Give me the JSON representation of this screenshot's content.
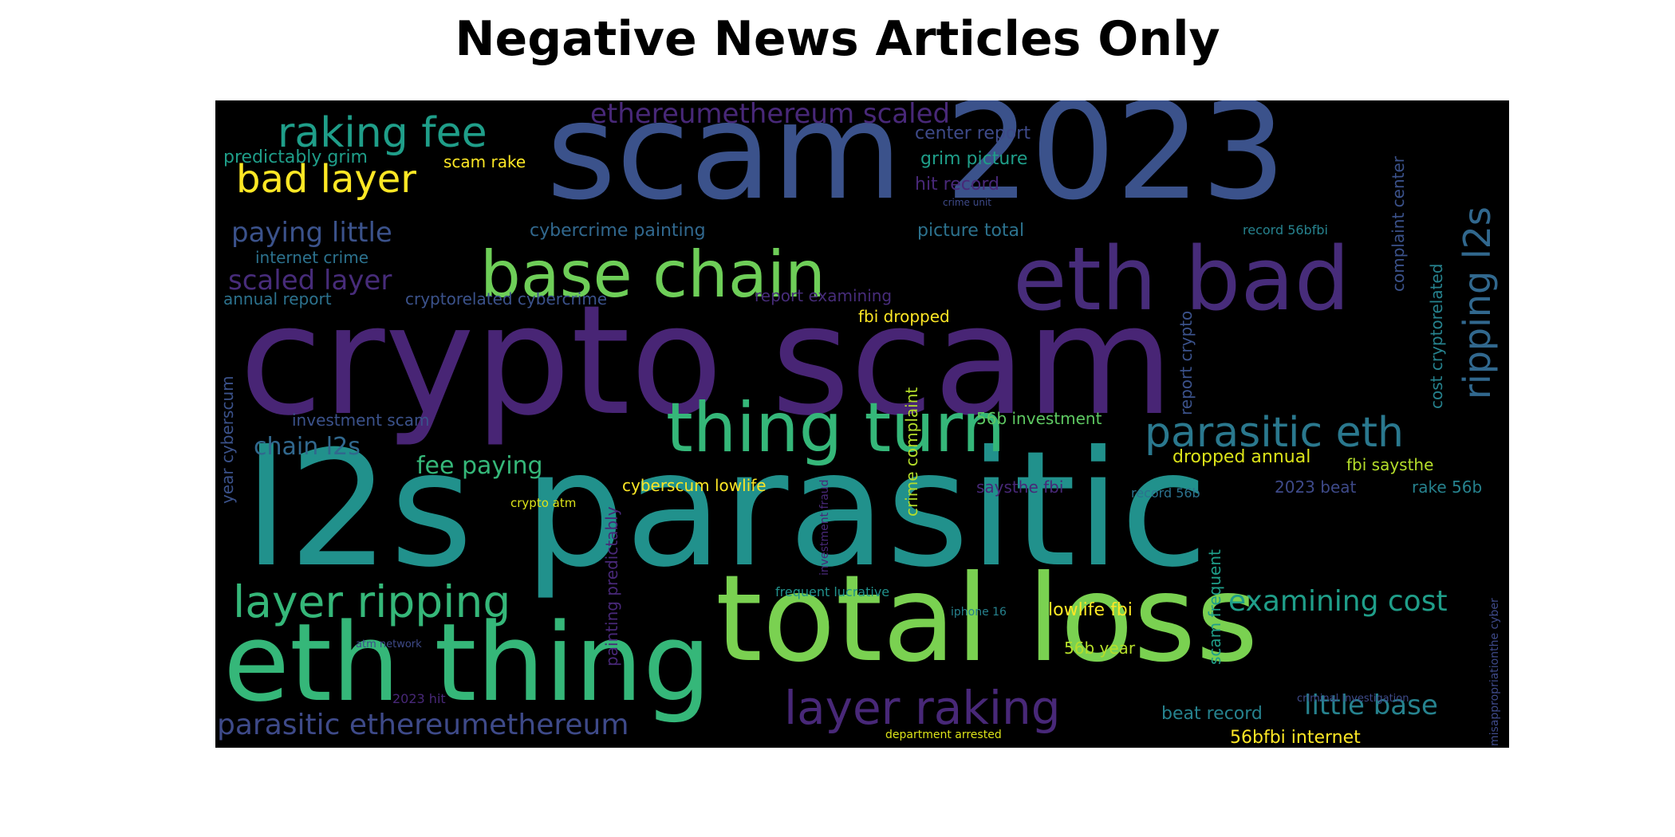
{
  "title": "Negative News Articles Only",
  "palette": {
    "background": "#000000",
    "dark_purple": "#482575",
    "purple": "#472c7a",
    "indigo": "#3b528b",
    "blue": "#31688e",
    "teal": "#26828e",
    "teal_green": "#1f9e89",
    "green": "#35b779",
    "light_green": "#6ece58",
    "lime": "#b5de2b",
    "yellow": "#fde725"
  },
  "words": [
    {
      "text": "crypto scam",
      "color": "#482575"
    },
    {
      "text": "l2s parasitic",
      "color": "#21918c"
    },
    {
      "text": "scam 2023",
      "color": "#3b528b"
    },
    {
      "text": "total loss",
      "color": "#7ad151"
    },
    {
      "text": "eth thing",
      "color": "#35b779"
    },
    {
      "text": "eth bad",
      "color": "#472c7a"
    },
    {
      "text": "thing turn",
      "color": "#35b779"
    },
    {
      "text": "base chain",
      "color": "#6ece58"
    },
    {
      "text": "layer raking",
      "color": "#482878"
    },
    {
      "text": "parasitic eth",
      "color": "#2a788e"
    },
    {
      "text": "ripping l2s",
      "color": "#31688e"
    },
    {
      "text": "layer ripping",
      "color": "#35b779"
    },
    {
      "text": "raking fee",
      "color": "#1f9e89"
    },
    {
      "text": "bad layer",
      "color": "#fde725"
    },
    {
      "text": "parasitic ethereumethereum",
      "color": "#3e4a89"
    },
    {
      "text": "examining cost",
      "color": "#1f9e89"
    },
    {
      "text": "ethereumethereum scaled",
      "color": "#482878"
    },
    {
      "text": "scaled layer",
      "color": "#472c7a"
    },
    {
      "text": "paying little",
      "color": "#3b528b"
    },
    {
      "text": "chain l2s",
      "color": "#31688e"
    },
    {
      "text": "fee paying",
      "color": "#35b779"
    },
    {
      "text": "little base",
      "color": "#26828e"
    },
    {
      "text": "predictably grim",
      "color": "#1f9e89"
    },
    {
      "text": "scam rake",
      "color": "#fde725"
    },
    {
      "text": "center report",
      "color": "#3e4a89"
    },
    {
      "text": "grim picture",
      "color": "#1f9e89"
    },
    {
      "text": "hit record",
      "color": "#482878"
    },
    {
      "text": "crime unit",
      "color": "#3e4a89"
    },
    {
      "text": "cybercrime painting",
      "color": "#31688e"
    },
    {
      "text": "picture total",
      "color": "#2c728e"
    },
    {
      "text": "record 56bfbi",
      "color": "#26828e"
    },
    {
      "text": "internet crime",
      "color": "#2c728e"
    },
    {
      "text": "annual report",
      "color": "#2c728e"
    },
    {
      "text": "cryptorelated cybercrime",
      "color": "#3b528b"
    },
    {
      "text": "report examining",
      "color": "#472c7a"
    },
    {
      "text": "fbi dropped",
      "color": "#fde725"
    },
    {
      "text": "investment scam",
      "color": "#3b528b"
    },
    {
      "text": "56b investment",
      "color": "#5ec962"
    },
    {
      "text": "dropped annual",
      "color": "#dce319"
    },
    {
      "text": "fbi saysthe",
      "color": "#b5de2b"
    },
    {
      "text": "saysthe fbi",
      "color": "#482878"
    },
    {
      "text": "2023 beat",
      "color": "#3e4a89"
    },
    {
      "text": "record 56b",
      "color": "#2c728e"
    },
    {
      "text": "rake 56b",
      "color": "#26828e"
    },
    {
      "text": "cyberscum lowlife",
      "color": "#fde725"
    },
    {
      "text": "crypto atm",
      "color": "#dce319"
    },
    {
      "text": "frequent lucrative",
      "color": "#21918c"
    },
    {
      "text": "iphone 16",
      "color": "#26828e"
    },
    {
      "text": "lowlife fbi",
      "color": "#fde725"
    },
    {
      "text": "56b year",
      "color": "#b5de2b"
    },
    {
      "text": "atm network",
      "color": "#3e4a89"
    },
    {
      "text": "2023 hit",
      "color": "#482878"
    },
    {
      "text": "criminal investigation",
      "color": "#3e4a89"
    },
    {
      "text": "department arrested",
      "color": "#dce319"
    },
    {
      "text": "beat record",
      "color": "#26828e"
    },
    {
      "text": "56bfbi internet",
      "color": "#fde725"
    },
    {
      "text": "year cyberscum",
      "color": "#3b528b"
    },
    {
      "text": "painting predictably",
      "color": "#482878"
    },
    {
      "text": "investment fraud",
      "color": "#482878"
    },
    {
      "text": "crime complaint",
      "color": "#b5de2b"
    },
    {
      "text": "scam frequent",
      "color": "#1f9e89"
    },
    {
      "text": "report crypto",
      "color": "#3b528b"
    },
    {
      "text": "cost cryptorelated",
      "color": "#26828e"
    },
    {
      "text": "complaint center",
      "color": "#3b528b"
    },
    {
      "text": "misappropriationthe cyber",
      "color": "#3e4a89"
    }
  ]
}
